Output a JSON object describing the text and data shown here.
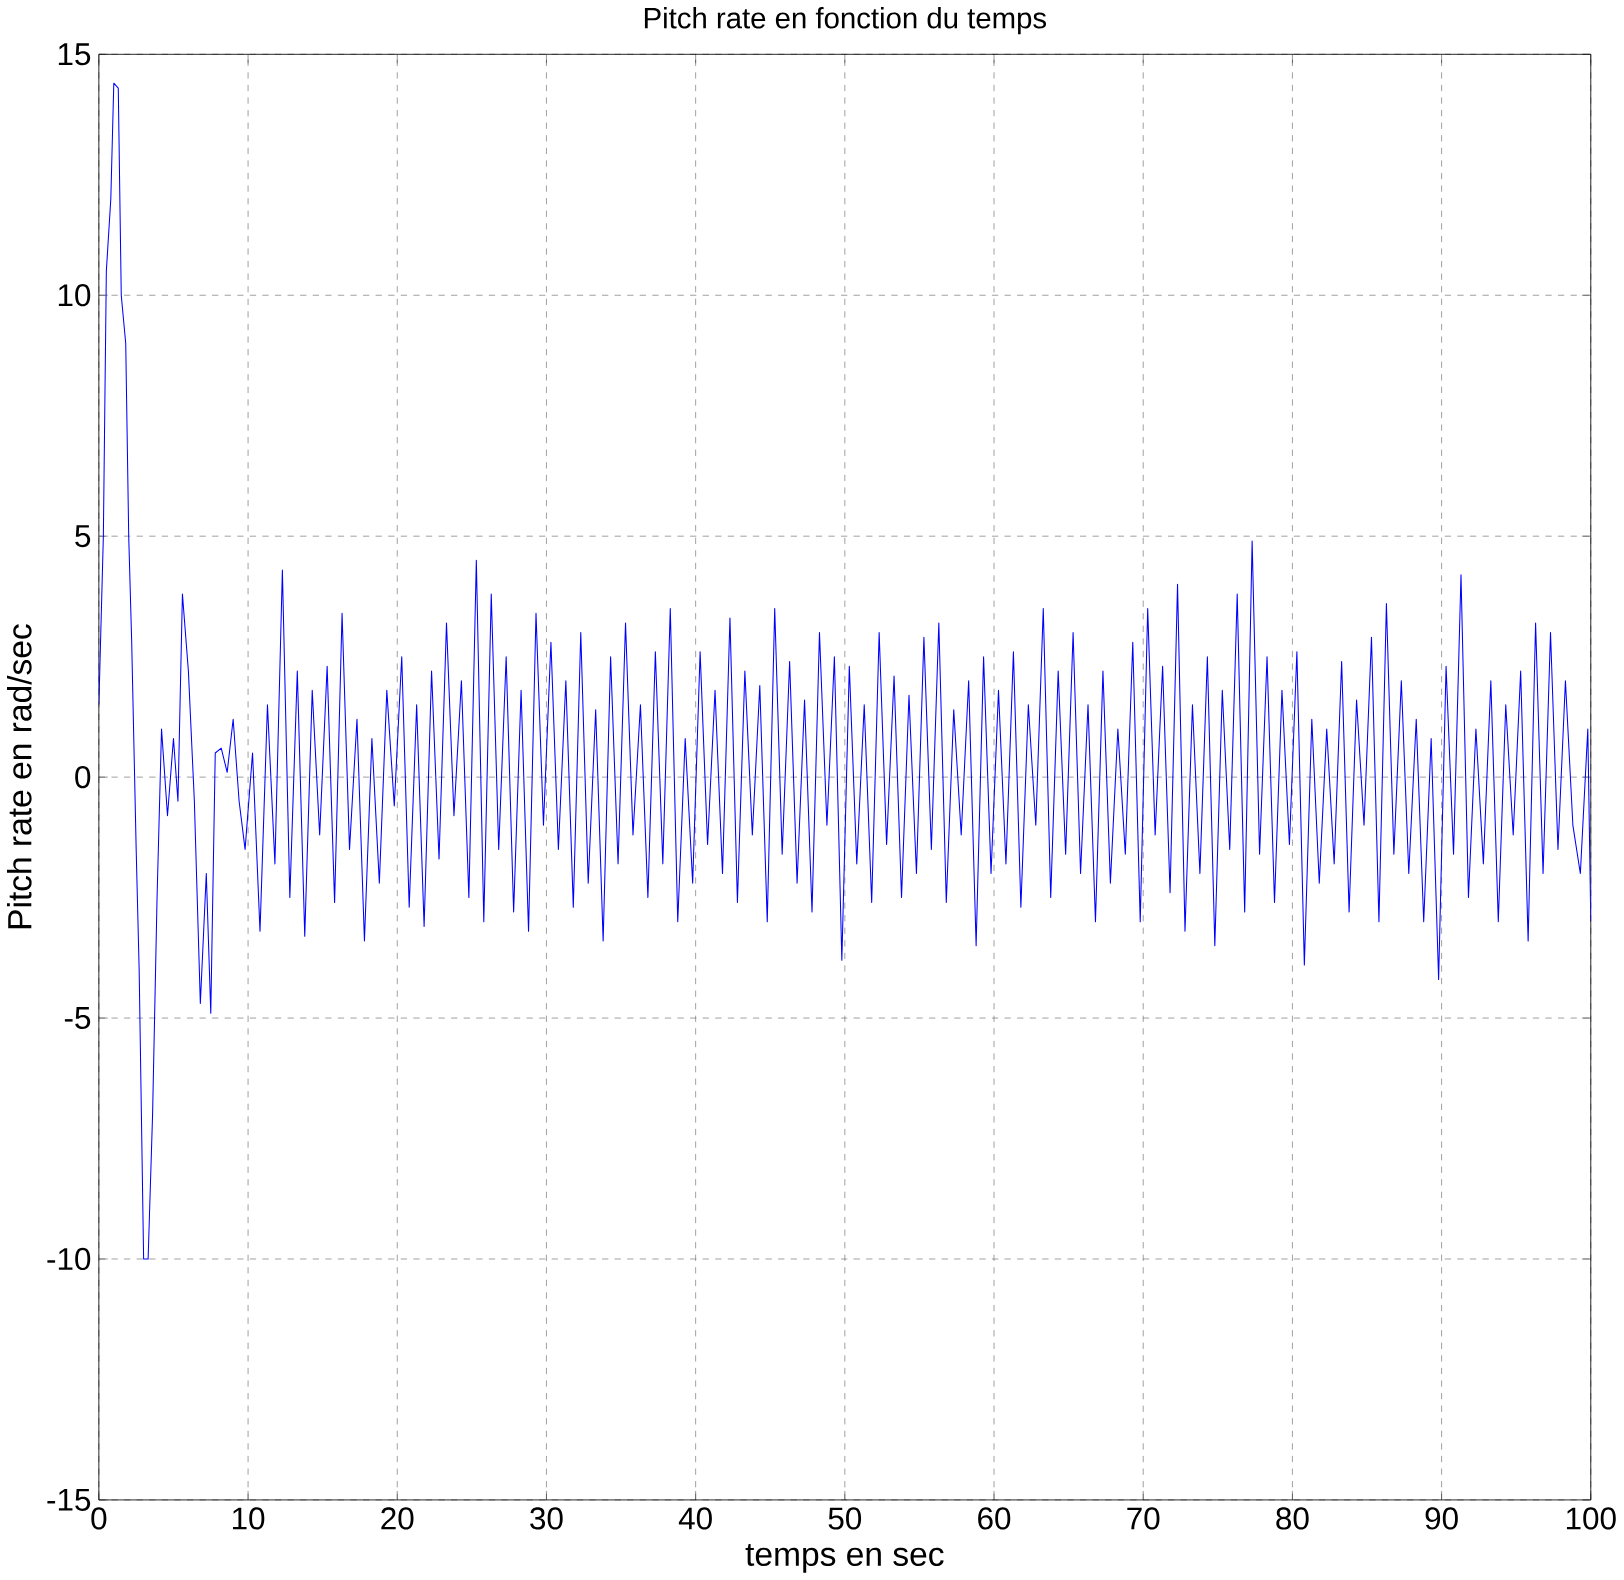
{
  "chart_data": {
    "type": "line",
    "title": "Pitch rate en fonction du temps",
    "xlabel": "temps en sec",
    "ylabel": "Pitch rate en rad/sec",
    "x": [
      0,
      0.3,
      0.5,
      0.8,
      1,
      1.3,
      1.5,
      1.8,
      2,
      2.2,
      2.5,
      2.7,
      3,
      3.3,
      3.6,
      3.9,
      4.2,
      4.6,
      5,
      5.3,
      5.6,
      6,
      6.4,
      6.8,
      7.2,
      7.5,
      7.8,
      8.2,
      8.6,
      9,
      9.4,
      9.8,
      10.3,
      10.8,
      11.3,
      11.8,
      12.3,
      12.8,
      13.3,
      13.8,
      14.3,
      14.8,
      15.3,
      15.8,
      16.3,
      16.8,
      17.3,
      17.8,
      18.3,
      18.8,
      19.3,
      19.8,
      20.3,
      20.8,
      21.3,
      21.8,
      22.3,
      22.8,
      23.3,
      23.8,
      24.3,
      24.8,
      25.3,
      25.8,
      26.3,
      26.8,
      27.3,
      27.8,
      28.3,
      28.8,
      29.3,
      29.8,
      30.3,
      30.8,
      31.3,
      31.8,
      32.3,
      32.8,
      33.3,
      33.8,
      34.3,
      34.8,
      35.3,
      35.8,
      36.3,
      36.8,
      37.3,
      37.8,
      38.3,
      38.8,
      39.3,
      39.8,
      40.3,
      40.8,
      41.3,
      41.8,
      42.3,
      42.8,
      43.3,
      43.8,
      44.3,
      44.8,
      45.3,
      45.8,
      46.3,
      46.8,
      47.3,
      47.8,
      48.3,
      48.8,
      49.3,
      49.8,
      50.3,
      50.8,
      51.3,
      51.8,
      52.3,
      52.8,
      53.3,
      53.8,
      54.3,
      54.8,
      55.3,
      55.8,
      56.3,
      56.8,
      57.3,
      57.8,
      58.3,
      58.8,
      59.3,
      59.8,
      60.3,
      60.8,
      61.3,
      61.8,
      62.3,
      62.8,
      63.3,
      63.8,
      64.3,
      64.8,
      65.3,
      65.8,
      66.3,
      66.8,
      67.3,
      67.8,
      68.3,
      68.8,
      69.3,
      69.8,
      70.3,
      70.8,
      71.3,
      71.8,
      72.3,
      72.8,
      73.3,
      73.8,
      74.3,
      74.8,
      75.3,
      75.8,
      76.3,
      76.8,
      77.3,
      77.8,
      78.3,
      78.8,
      79.3,
      79.8,
      80.3,
      80.8,
      81.3,
      81.8,
      82.3,
      82.8,
      83.3,
      83.8,
      84.3,
      84.8,
      85.3,
      85.8,
      86.3,
      86.8,
      87.3,
      87.8,
      88.3,
      88.8,
      89.3,
      89.8,
      90.3,
      90.8,
      91.3,
      91.8,
      92.3,
      92.8,
      93.3,
      93.8,
      94.3,
      94.8,
      95.3,
      95.8,
      96.3,
      96.8,
      97.3,
      97.8,
      98.3,
      98.8,
      99.3,
      99.8,
      100
    ],
    "series": [
      {
        "color": "#0000ff",
        "values": [
          1.5,
          5,
          10.5,
          12,
          14.4,
          14.3,
          10,
          9,
          5,
          2.8,
          -1.5,
          -4,
          -10,
          -10,
          -7,
          -2.5,
          1,
          -0.8,
          0.8,
          -0.5,
          3.8,
          2.2,
          -0.5,
          -4.7,
          -2,
          -4.9,
          0.5,
          0.6,
          0.1,
          1.2,
          -0.5,
          -1.5,
          0.5,
          -3.2,
          1.5,
          -1.8,
          4.3,
          -2.5,
          2.2,
          -3.3,
          1.8,
          -1.2,
          2.3,
          -2.6,
          3.4,
          -1.5,
          1.2,
          -3.4,
          0.8,
          -2.2,
          1.8,
          -0.6,
          2.5,
          -2.7,
          1.5,
          -3.1,
          2.2,
          -1.7,
          3.2,
          -0.8,
          2.0,
          -2.5,
          4.5,
          -3.0,
          3.8,
          -1.5,
          2.5,
          -2.8,
          1.8,
          -3.2,
          3.4,
          -1.0,
          2.8,
          -1.5,
          2.0,
          -2.7,
          3.0,
          -2.2,
          1.4,
          -3.4,
          2.5,
          -1.8,
          3.2,
          -1.2,
          1.5,
          -2.5,
          2.6,
          -1.8,
          3.5,
          -3.0,
          0.8,
          -2.2,
          2.6,
          -1.4,
          1.8,
          -2.0,
          3.3,
          -2.6,
          2.2,
          -1.2,
          1.9,
          -3.0,
          3.5,
          -1.6,
          2.4,
          -2.2,
          1.6,
          -2.8,
          3.0,
          -1.0,
          2.5,
          -3.8,
          2.3,
          -1.8,
          1.5,
          -2.6,
          3.0,
          -1.4,
          2.1,
          -2.5,
          1.7,
          -2.0,
          2.9,
          -1.5,
          3.2,
          -2.6,
          1.4,
          -1.2,
          2.0,
          -3.5,
          2.5,
          -2.0,
          1.8,
          -1.8,
          2.6,
          -2.7,
          1.5,
          -1.0,
          3.5,
          -2.5,
          2.2,
          -1.6,
          3.0,
          -2.0,
          1.5,
          -3.0,
          2.2,
          -2.2,
          1.0,
          -1.6,
          2.8,
          -3.0,
          3.5,
          -1.2,
          2.3,
          -2.4,
          4.0,
          -3.2,
          1.5,
          -2.0,
          2.5,
          -3.5,
          1.8,
          -1.5,
          3.8,
          -2.8,
          4.9,
          -1.6,
          2.5,
          -2.6,
          1.8,
          -1.4,
          2.6,
          -3.9,
          1.2,
          -2.2,
          1.0,
          -1.8,
          2.4,
          -2.8,
          1.6,
          -1.0,
          2.9,
          -3.0,
          3.6,
          -1.6,
          2.0,
          -2.0,
          1.2,
          -3.0,
          0.8,
          -4.2,
          2.3,
          -1.6,
          4.2,
          -2.5,
          1.0,
          -1.8,
          2.0,
          -3.0,
          1.5,
          -1.2,
          2.2,
          -3.4,
          3.2,
          -2.0,
          3.0,
          -1.5,
          2.0,
          -1.0,
          -2.0,
          1.0,
          -3.0
        ]
      }
    ],
    "xlim": [
      0,
      100
    ],
    "ylim": [
      -15,
      15
    ],
    "xticks": [
      0,
      10,
      20,
      30,
      40,
      50,
      60,
      70,
      80,
      90,
      100
    ],
    "yticks": [
      -15,
      -10,
      -5,
      0,
      5,
      10,
      15
    ],
    "grid": true
  }
}
